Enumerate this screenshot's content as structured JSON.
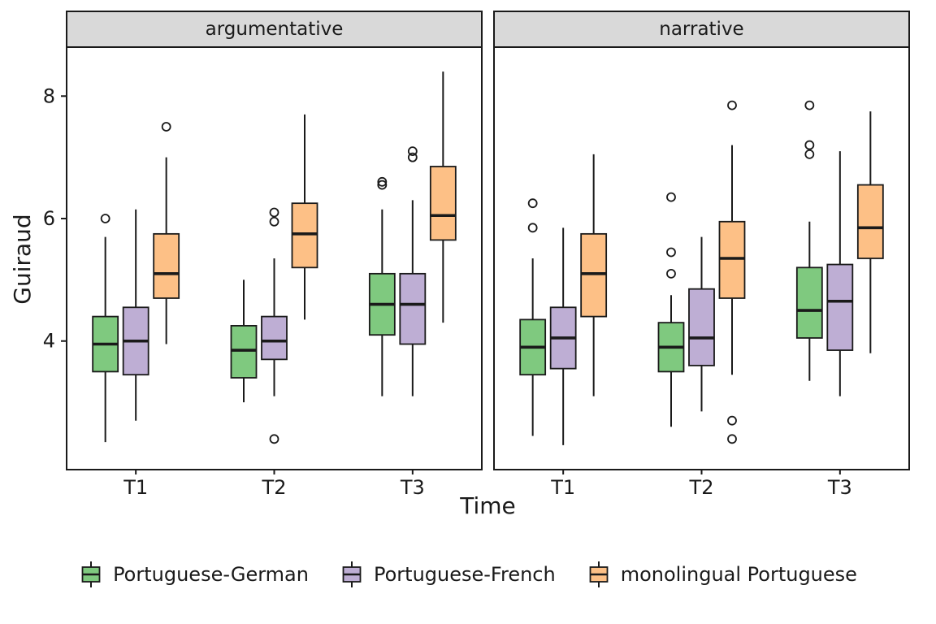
{
  "chart_data": {
    "type": "boxplot",
    "title": "",
    "xlabel": "Time",
    "ylabel": "Guiraud",
    "ylim": [
      1.9,
      8.8
    ],
    "yticks": [
      4,
      6,
      8
    ],
    "facets": [
      "argumentative",
      "narrative"
    ],
    "categories": [
      "T1",
      "T2",
      "T3"
    ],
    "legend_position": "bottom",
    "grid": false,
    "series": [
      {
        "name": "Portuguese-German",
        "color": "#7FC97F"
      },
      {
        "name": "Portuguese-French",
        "color": "#BEAED4"
      },
      {
        "name": "monolingual Portuguese",
        "color": "#FDC086"
      }
    ],
    "boxes": [
      {
        "facet": "argumentative",
        "time": "T1",
        "series": "Portuguese-German",
        "low": 2.35,
        "q1": 3.5,
        "median": 3.95,
        "q3": 4.4,
        "high": 5.7,
        "outliers": [
          6.0
        ]
      },
      {
        "facet": "argumentative",
        "time": "T1",
        "series": "Portuguese-French",
        "low": 2.7,
        "q1": 3.45,
        "median": 4.0,
        "q3": 4.55,
        "high": 6.15,
        "outliers": []
      },
      {
        "facet": "argumentative",
        "time": "T1",
        "series": "monolingual Portuguese",
        "low": 3.95,
        "q1": 4.7,
        "median": 5.1,
        "q3": 5.75,
        "high": 7.0,
        "outliers": [
          7.5
        ]
      },
      {
        "facet": "argumentative",
        "time": "T2",
        "series": "Portuguese-German",
        "low": 3.0,
        "q1": 3.4,
        "median": 3.85,
        "q3": 4.25,
        "high": 5.0,
        "outliers": []
      },
      {
        "facet": "argumentative",
        "time": "T2",
        "series": "Portuguese-French",
        "low": 3.1,
        "q1": 3.7,
        "median": 4.0,
        "q3": 4.4,
        "high": 5.35,
        "outliers": [
          6.1,
          5.95,
          2.4
        ]
      },
      {
        "facet": "argumentative",
        "time": "T2",
        "series": "monolingual Portuguese",
        "low": 4.35,
        "q1": 5.2,
        "median": 5.75,
        "q3": 6.25,
        "high": 7.7,
        "outliers": []
      },
      {
        "facet": "argumentative",
        "time": "T3",
        "series": "Portuguese-German",
        "low": 3.1,
        "q1": 4.1,
        "median": 4.6,
        "q3": 5.1,
        "high": 6.15,
        "outliers": [
          6.6,
          6.55
        ]
      },
      {
        "facet": "argumentative",
        "time": "T3",
        "series": "Portuguese-French",
        "low": 3.1,
        "q1": 3.95,
        "median": 4.6,
        "q3": 5.1,
        "high": 6.3,
        "outliers": [
          7.1,
          7.0
        ]
      },
      {
        "facet": "argumentative",
        "time": "T3",
        "series": "monolingual Portuguese",
        "low": 4.3,
        "q1": 5.65,
        "median": 6.05,
        "q3": 6.85,
        "high": 8.4,
        "outliers": []
      },
      {
        "facet": "narrative",
        "time": "T1",
        "series": "Portuguese-German",
        "low": 2.45,
        "q1": 3.45,
        "median": 3.9,
        "q3": 4.35,
        "high": 5.35,
        "outliers": [
          6.25,
          5.85
        ]
      },
      {
        "facet": "narrative",
        "time": "T1",
        "series": "Portuguese-French",
        "low": 2.3,
        "q1": 3.55,
        "median": 4.05,
        "q3": 4.55,
        "high": 5.85,
        "outliers": []
      },
      {
        "facet": "narrative",
        "time": "T1",
        "series": "monolingual Portuguese",
        "low": 3.1,
        "q1": 4.4,
        "median": 5.1,
        "q3": 5.75,
        "high": 7.05,
        "outliers": []
      },
      {
        "facet": "narrative",
        "time": "T2",
        "series": "Portuguese-German",
        "low": 2.6,
        "q1": 3.5,
        "median": 3.9,
        "q3": 4.3,
        "high": 4.75,
        "outliers": [
          6.35,
          5.45,
          5.1
        ]
      },
      {
        "facet": "narrative",
        "time": "T2",
        "series": "Portuguese-French",
        "low": 2.85,
        "q1": 3.6,
        "median": 4.05,
        "q3": 4.85,
        "high": 5.7,
        "outliers": []
      },
      {
        "facet": "narrative",
        "time": "T2",
        "series": "monolingual Portuguese",
        "low": 3.45,
        "q1": 4.7,
        "median": 5.35,
        "q3": 5.95,
        "high": 7.2,
        "outliers": [
          7.85,
          2.7,
          2.4
        ]
      },
      {
        "facet": "narrative",
        "time": "T3",
        "series": "Portuguese-German",
        "low": 3.35,
        "q1": 4.05,
        "median": 4.5,
        "q3": 5.2,
        "high": 5.95,
        "outliers": [
          7.85,
          7.2,
          7.05
        ]
      },
      {
        "facet": "narrative",
        "time": "T3",
        "series": "Portuguese-French",
        "low": 3.1,
        "q1": 3.85,
        "median": 4.65,
        "q3": 5.25,
        "high": 7.1,
        "outliers": []
      },
      {
        "facet": "narrative",
        "time": "T3",
        "series": "monolingual Portuguese",
        "low": 3.8,
        "q1": 5.35,
        "median": 5.85,
        "q3": 6.55,
        "high": 7.75,
        "outliers": []
      }
    ]
  }
}
